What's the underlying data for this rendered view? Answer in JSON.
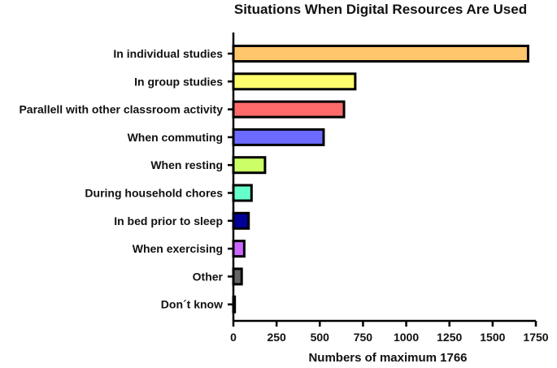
{
  "chart_data": {
    "type": "bar",
    "orientation": "horizontal",
    "title": "Situations When Digital Resources Are Used",
    "xlabel": "Numbers of  maximum 1766",
    "ylabel": "",
    "xlim": [
      0,
      1750
    ],
    "xticks": [
      0,
      250,
      500,
      750,
      1000,
      1250,
      1500,
      1750
    ],
    "xtick_labels": [
      "0",
      "250",
      "500",
      "750",
      "1000",
      "1250",
      "1500",
      "1750"
    ],
    "grid": false,
    "categories": [
      "In individual studies",
      "In group studies",
      "Parallell with other classroom activity",
      "When commuting",
      "When resting",
      "During household chores",
      "In bed prior to sleep",
      "When exercising",
      "Other",
      "Don´t know"
    ],
    "values": [
      1705,
      705,
      640,
      522,
      183,
      105,
      88,
      63,
      48,
      8
    ],
    "colors": [
      "#FFC66B",
      "#FFFF6E",
      "#FF6B6B",
      "#6B6BFF",
      "#CCFF66",
      "#66FFCC",
      "#000099",
      "#CC66FF",
      "#666666",
      "#000000"
    ]
  }
}
